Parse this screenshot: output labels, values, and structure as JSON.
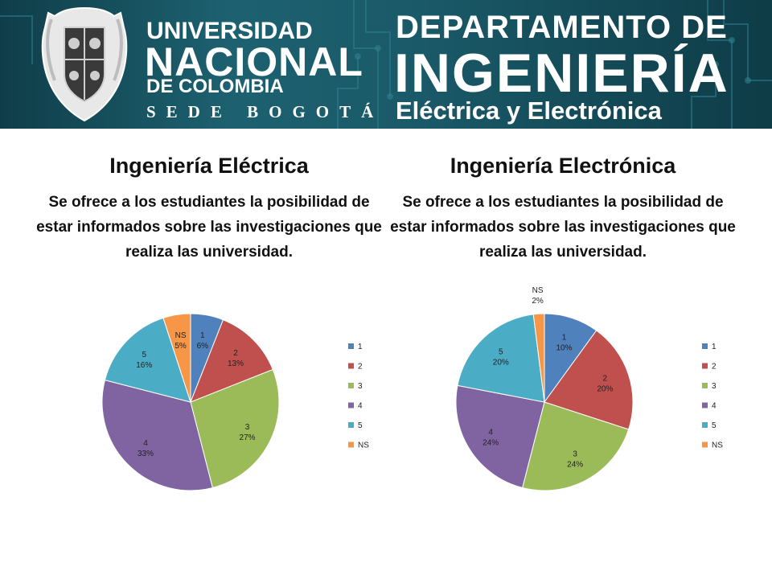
{
  "header": {
    "university": {
      "line1": "UNIVERSIDAD",
      "line2": "NACIONAL",
      "line3": "DE COLOMBIA",
      "line4": "SEDE BOGOTÁ"
    },
    "department": {
      "line1": "DEPARTAMENTO DE",
      "line2": "INGENIERÍA",
      "line3": "Eléctrica y Electrónica"
    }
  },
  "colors": {
    "banner": "#1d6170",
    "s1": "#4f81bd",
    "s2": "#c0504d",
    "s3": "#9bbb59",
    "s4": "#8064a2",
    "s5": "#4bacc6",
    "sNS": "#f79646"
  },
  "chart_data": [
    {
      "type": "pie",
      "title": "Ingeniería Eléctrica",
      "subtitle": "Se ofrece a los estudiantes la posibilidad de estar informados sobre las investigaciones que realiza las universidad.",
      "categories": [
        "1",
        "2",
        "3",
        "4",
        "5",
        "NS"
      ],
      "values": [
        6,
        13,
        27,
        33,
        16,
        5
      ],
      "labels": [
        "6%",
        "13%",
        "27%",
        "33%",
        "16%",
        "5%"
      ],
      "legend": "right"
    },
    {
      "type": "pie",
      "title": "Ingeniería Electrónica",
      "subtitle": "Se ofrece a los estudiantes la posibilidad de estar informados sobre las investigaciones que realiza las universidad.",
      "categories": [
        "1",
        "2",
        "3",
        "4",
        "5",
        "NS"
      ],
      "values": [
        10,
        20,
        24,
        24,
        20,
        2
      ],
      "labels": [
        "10%",
        "20%",
        "24%",
        "24%",
        "20%",
        "2%"
      ],
      "legend": "right"
    }
  ]
}
